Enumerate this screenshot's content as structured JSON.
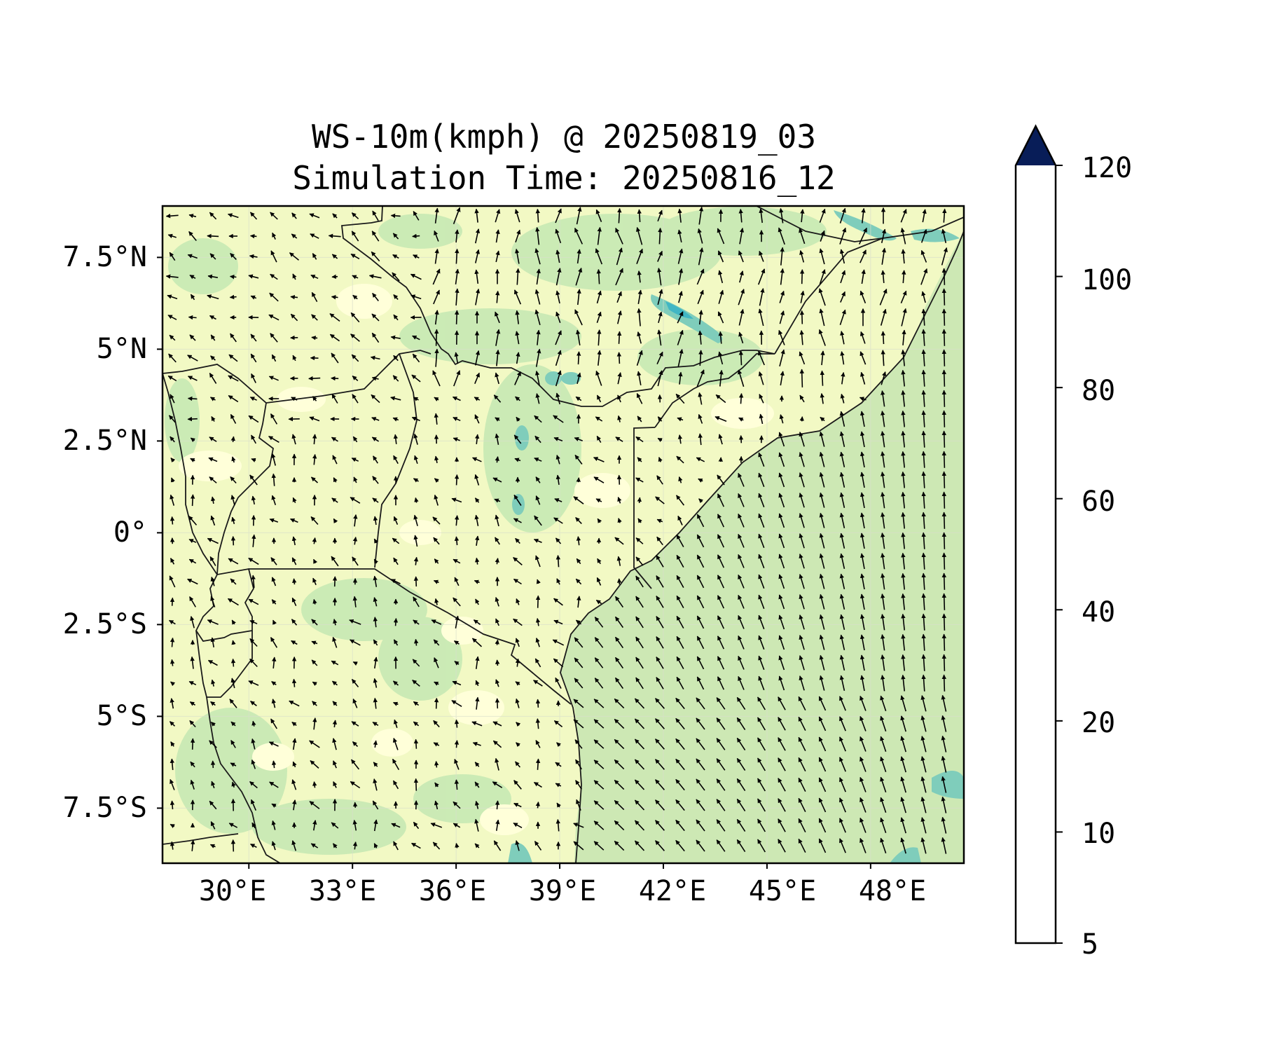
{
  "figure": {
    "title_line1": "WS-10m(kmph) @ 20250819_03",
    "title_line2": "Simulation Time: 20250816_12"
  },
  "map": {
    "lon_range": [
      27.5,
      50.7
    ],
    "lat_range": [
      -9.0,
      8.9
    ],
    "lat_ticks": [
      {
        "value": 7.5,
        "label": "7.5°N"
      },
      {
        "value": 5,
        "label": "5°N"
      },
      {
        "value": 2.5,
        "label": "2.5°N"
      },
      {
        "value": 0,
        "label": "0°"
      },
      {
        "value": -2.5,
        "label": "2.5°S"
      },
      {
        "value": -5,
        "label": "5°S"
      },
      {
        "value": -7.5,
        "label": "7.5°S"
      }
    ],
    "lon_ticks": [
      {
        "value": 30,
        "label": "30°E"
      },
      {
        "value": 33,
        "label": "33°E"
      },
      {
        "value": 36,
        "label": "36°E"
      },
      {
        "value": 39,
        "label": "39°E"
      },
      {
        "value": 42,
        "label": "42°E"
      },
      {
        "value": 45,
        "label": "45°E"
      },
      {
        "value": 48,
        "label": "48°E"
      }
    ],
    "gridlines": true,
    "field": "10 m wind speed (kmph) shaded with wind-direction arrows",
    "colors": {
      "land_base": "#f2f9c4",
      "ocean_base": "#cde8b4"
    }
  },
  "colorbar": {
    "levels": [
      5,
      10,
      20,
      40,
      60,
      80,
      100,
      120
    ],
    "labels": [
      "5",
      "10",
      "20",
      "40",
      "60",
      "80",
      "100",
      "120"
    ],
    "colors": [
      "#ffffd9",
      "#edf8b1",
      "#c7e9b4",
      "#7fcdbb",
      "#41b6c4",
      "#1d91c0",
      "#253494"
    ],
    "extend_color": "#081d58",
    "extend": "max"
  }
}
